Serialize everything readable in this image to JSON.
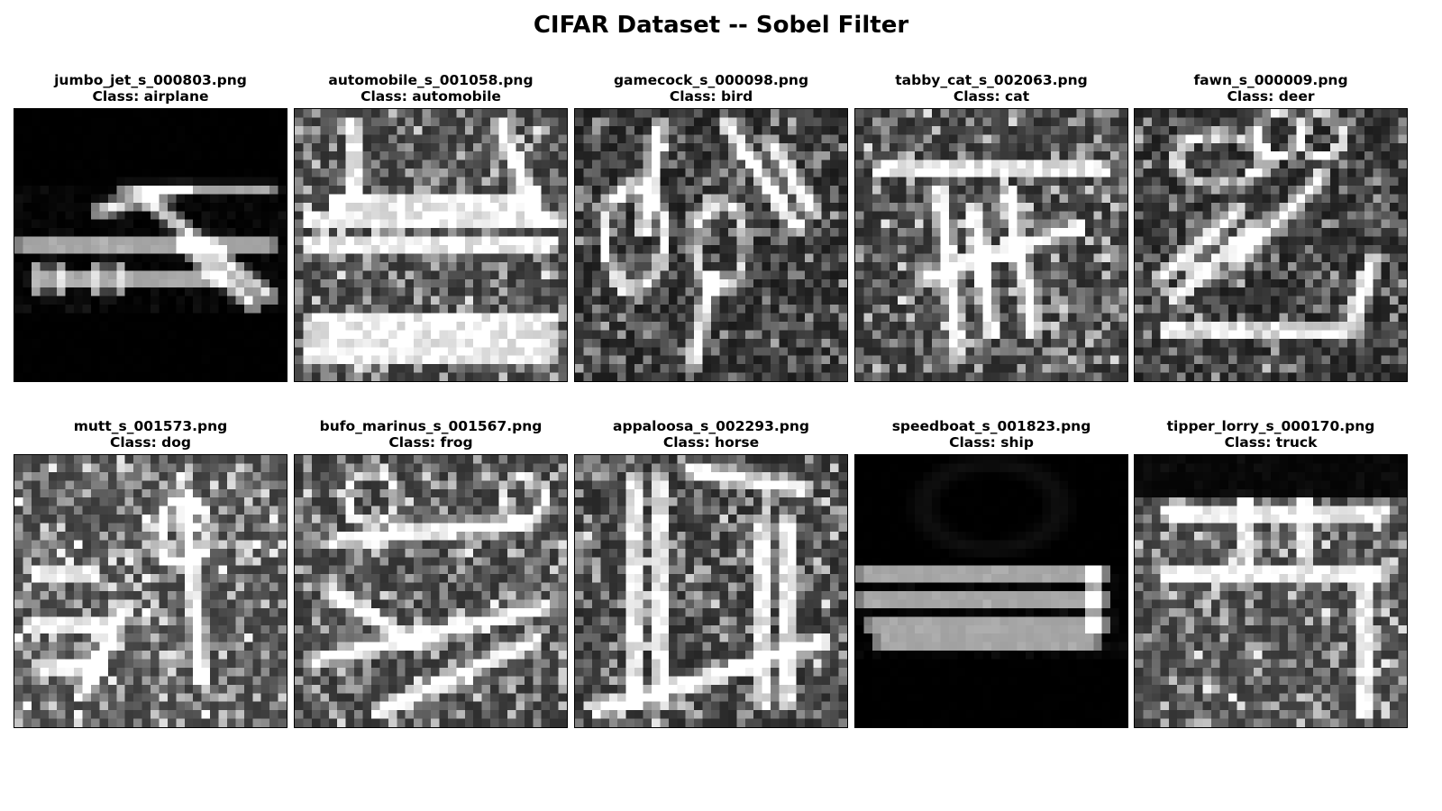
{
  "figure": {
    "title": "CIFAR Dataset -- Sobel Filter"
  },
  "panels": [
    {
      "filename": "jumbo_jet_s_000803.png",
      "class_label": "Class: airplane",
      "pattern": "airplane"
    },
    {
      "filename": "automobile_s_001058.png",
      "class_label": "Class: automobile",
      "pattern": "automobile"
    },
    {
      "filename": "gamecock_s_000098.png",
      "class_label": "Class: bird",
      "pattern": "bird"
    },
    {
      "filename": "tabby_cat_s_002063.png",
      "class_label": "Class: cat",
      "pattern": "cat"
    },
    {
      "filename": "fawn_s_000009.png",
      "class_label": "Class: deer",
      "pattern": "deer"
    },
    {
      "filename": "mutt_s_001573.png",
      "class_label": "Class: dog",
      "pattern": "dog"
    },
    {
      "filename": "bufo_marinus_s_001567.png",
      "class_label": "Class: frog",
      "pattern": "frog"
    },
    {
      "filename": "appaloosa_s_002293.png",
      "class_label": "Class: horse",
      "pattern": "horse"
    },
    {
      "filename": "speedboat_s_001823.png",
      "class_label": "Class: ship",
      "pattern": "ship"
    },
    {
      "filename": "tipper_lorry_s_000170.png",
      "class_label": "Class: truck",
      "pattern": "truck"
    }
  ]
}
